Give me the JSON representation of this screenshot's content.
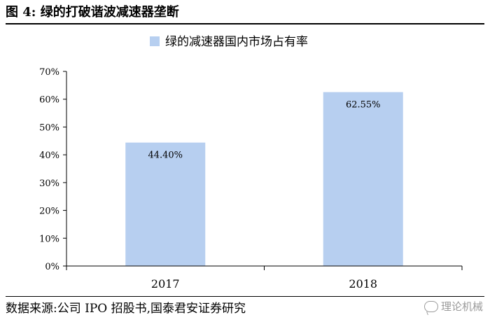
{
  "header": {
    "figure_label": "图 4:",
    "title": "绿的打破谐波减速器垄断"
  },
  "footer": {
    "source": "数据来源:公司 IPO 招股书,国泰君安证券研究"
  },
  "watermark": {
    "text": "理论机械",
    "icon": "wechat-icon"
  },
  "chart_data": {
    "type": "bar",
    "title": "",
    "xlabel": "",
    "ylabel": "",
    "categories": [
      "2017",
      "2018"
    ],
    "series": [
      {
        "name": "绿的减速器国内市场占有率",
        "values": [
          44.4,
          62.55
        ],
        "labels": [
          "44.40%",
          "62.55%"
        ]
      }
    ],
    "ylim": [
      0,
      70
    ],
    "yticks": [
      0,
      10,
      20,
      30,
      40,
      50,
      60,
      70
    ],
    "ytick_labels": [
      "0%",
      "10%",
      "20%",
      "30%",
      "40%",
      "50%",
      "60%",
      "70%"
    ],
    "grid": false,
    "legend_position": "top-center",
    "bar_color": "#b7cff0"
  }
}
